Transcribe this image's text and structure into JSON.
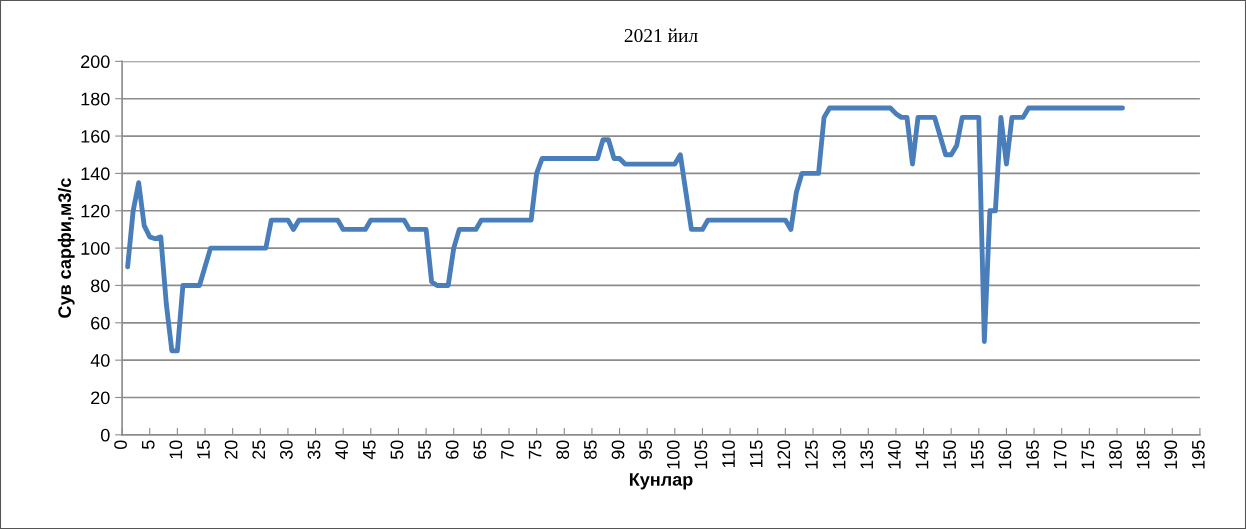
{
  "chart_data": {
    "type": "line",
    "title": "2021 йил",
    "xlabel": "Кунлар",
    "ylabel": "Сув сарфи,м3/с",
    "x": [
      1,
      2,
      3,
      4,
      5,
      6,
      7,
      8,
      9,
      10,
      11,
      12,
      13,
      14,
      15,
      16,
      17,
      18,
      19,
      20,
      21,
      22,
      23,
      24,
      25,
      26,
      27,
      28,
      29,
      30,
      31,
      32,
      33,
      34,
      35,
      36,
      37,
      38,
      39,
      40,
      41,
      42,
      43,
      44,
      45,
      46,
      47,
      48,
      49,
      50,
      51,
      52,
      53,
      54,
      55,
      56,
      57,
      58,
      59,
      60,
      61,
      62,
      63,
      64,
      65,
      66,
      67,
      68,
      69,
      70,
      71,
      72,
      73,
      74,
      75,
      76,
      77,
      78,
      79,
      80,
      81,
      82,
      83,
      84,
      85,
      86,
      87,
      88,
      89,
      90,
      91,
      92,
      93,
      94,
      95,
      96,
      97,
      98,
      99,
      100,
      101,
      102,
      103,
      104,
      105,
      106,
      107,
      108,
      109,
      110,
      111,
      112,
      113,
      114,
      115,
      116,
      117,
      118,
      119,
      120,
      121,
      122,
      123,
      124,
      125,
      126,
      127,
      128,
      129,
      130,
      131,
      132,
      133,
      134,
      135,
      136,
      137,
      138,
      139,
      140,
      141,
      142,
      143,
      144,
      145,
      146,
      147,
      148,
      149,
      150,
      151,
      152,
      153,
      154,
      155,
      156,
      157,
      158,
      159,
      160,
      161,
      162,
      163,
      164,
      165,
      166,
      167,
      168,
      169,
      170,
      171,
      172,
      173,
      174,
      175,
      176,
      177,
      178,
      179,
      180,
      181
    ],
    "series": [
      {
        "color": "#4a7ebb",
        "values": [
          90,
          120,
          135,
          112,
          106,
          105,
          106,
          70,
          45,
          45,
          80,
          80,
          80,
          80,
          90,
          100,
          100,
          100,
          100,
          100,
          100,
          100,
          100,
          100,
          100,
          100,
          115,
          115,
          115,
          115,
          110,
          115,
          115,
          115,
          115,
          115,
          115,
          115,
          115,
          110,
          110,
          110,
          110,
          110,
          115,
          115,
          115,
          115,
          115,
          115,
          115,
          110,
          110,
          110,
          110,
          82,
          80,
          80,
          80,
          100,
          110,
          110,
          110,
          110,
          115,
          115,
          115,
          115,
          115,
          115,
          115,
          115,
          115,
          115,
          140,
          148,
          148,
          148,
          148,
          148,
          148,
          148,
          148,
          148,
          148,
          148,
          158,
          158,
          148,
          148,
          145,
          145,
          145,
          145,
          145,
          145,
          145,
          145,
          145,
          145,
          150,
          130,
          110,
          110,
          110,
          115,
          115,
          115,
          115,
          115,
          115,
          115,
          115,
          115,
          115,
          115,
          115,
          115,
          115,
          115,
          110,
          130,
          140,
          140,
          140,
          140,
          170,
          175,
          175,
          175,
          175,
          175,
          175,
          175,
          175,
          175,
          175,
          175,
          175,
          172,
          170,
          170,
          145,
          170,
          170,
          170,
          170,
          160,
          150,
          150,
          155,
          170,
          170,
          170,
          170,
          50,
          120,
          120,
          170,
          145,
          170,
          170,
          170,
          175,
          175,
          175,
          175,
          175,
          175,
          175,
          175,
          175,
          175,
          175,
          175,
          175,
          175,
          175,
          175,
          175,
          175
        ]
      }
    ],
    "xlim": [
      0,
      195
    ],
    "xticks": [
      0,
      5,
      10,
      15,
      20,
      25,
      30,
      35,
      40,
      45,
      50,
      55,
      60,
      65,
      70,
      75,
      80,
      85,
      90,
      95,
      100,
      105,
      110,
      115,
      120,
      125,
      130,
      135,
      140,
      145,
      150,
      155,
      160,
      165,
      170,
      175,
      180,
      185,
      190,
      195
    ],
    "ylim": [
      0,
      200
    ],
    "yticks": [
      0,
      20,
      40,
      60,
      80,
      100,
      120,
      140,
      160,
      180,
      200
    ],
    "grid": "y",
    "legend": false,
    "marker": "none",
    "line_style": "solid"
  }
}
